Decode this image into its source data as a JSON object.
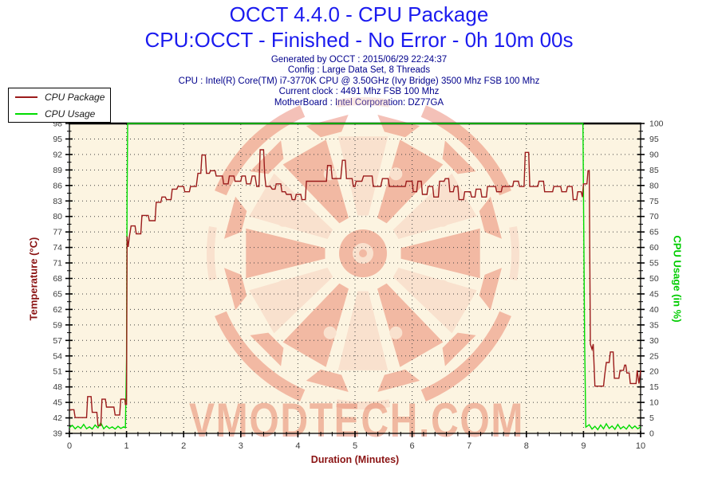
{
  "header": {
    "title": "OCCT 4.4.0 - CPU Package",
    "subtitle": "CPU:OCCT - Finished - No Error - 0h 10m 00s",
    "info_lines": [
      "Generated by OCCT : 2015/06/29 22:24:37",
      "Config : Large Data Set, 8 Threads",
      "CPU : Intel(R) Core(TM) i7-3770K CPU @ 3.50GHz (Ivy Bridge) 3500 Mhz FSB 100 Mhz",
      "Current clock : 4491 Mhz FSB 100 Mhz",
      "MotherBoard : Intel Corporation: DZ77GA"
    ]
  },
  "legend": {
    "items": [
      {
        "label": "CPU Package",
        "color": "#9b1b1b"
      },
      {
        "label": "CPU Usage",
        "color": "#00dc00"
      }
    ]
  },
  "watermark": {
    "text": "VMODTECH.COM"
  },
  "colors": {
    "title_blue": "#1b1bef",
    "info_navy": "#00008c",
    "plot_bg": "#fcf4e1",
    "grid": "#444444",
    "axis": "#000000",
    "tick_label": "#3c3c3c",
    "temp_line": "#9b1b1b",
    "usage_line": "#00dc00",
    "temp_axis_title": "#8b1414",
    "usage_axis_title": "#00cc00",
    "watermark_red": "#dd3418",
    "watermark_light": "#f3b7a4",
    "watermark_text": "#e06648"
  },
  "chart_data": {
    "type": "line",
    "title": "OCCT 4.4.0 - CPU Package",
    "xlabel": "Duration (Minutes)",
    "ylabel_left": "Temperature (°C)",
    "ylabel_right": "CPU Usage (in %)",
    "x_range": [
      0,
      10
    ],
    "x_tick_labels": [
      "0",
      "1",
      "2",
      "3",
      "4",
      "5",
      "6",
      "7",
      "8",
      "9",
      "10"
    ],
    "x_minor_per_major": 5,
    "y_left_range": [
      39,
      98
    ],
    "y_left_tick_labels": [
      "98",
      "95",
      "92",
      "89",
      "86",
      "83",
      "80",
      "77",
      "74",
      "71",
      "68",
      "65",
      "62",
      "59",
      "57",
      "54",
      "51",
      "48",
      "45",
      "42",
      "39"
    ],
    "y_right_range": [
      0,
      100
    ],
    "y_right_tick_labels": [
      "100",
      "95",
      "90",
      "85",
      "80",
      "75",
      "70",
      "65",
      "60",
      "55",
      "50",
      "45",
      "40",
      "35",
      "30",
      "25",
      "20",
      "15",
      "10",
      "5",
      "0"
    ],
    "y_minor_per_major": 2,
    "grid": "dotted",
    "legend_position": "top-left",
    "series": [
      {
        "name": "CPU Package",
        "axis": "left",
        "unit": "°C",
        "color": "#9b1b1b",
        "points": [
          [
            0,
            43.5
          ],
          [
            0.08,
            43.5
          ],
          [
            0.1,
            42
          ],
          [
            0.3,
            42
          ],
          [
            0.32,
            46
          ],
          [
            0.38,
            46
          ],
          [
            0.4,
            43
          ],
          [
            0.48,
            43
          ],
          [
            0.5,
            40.5
          ],
          [
            0.55,
            40.5
          ],
          [
            0.57,
            45.5
          ],
          [
            0.63,
            45.5
          ],
          [
            0.65,
            44
          ],
          [
            0.78,
            44
          ],
          [
            0.8,
            42.5
          ],
          [
            0.88,
            42.5
          ],
          [
            0.9,
            45.5
          ],
          [
            0.97,
            45.5
          ],
          [
            0.98,
            44.5
          ],
          [
            1.0,
            44.5
          ],
          [
            1.01,
            76.5
          ],
          [
            1.03,
            74.5
          ],
          [
            1.05,
            76.5
          ],
          [
            1.08,
            78.5
          ],
          [
            1.15,
            78.5
          ],
          [
            1.17,
            77
          ],
          [
            1.25,
            77
          ],
          [
            1.27,
            80.5
          ],
          [
            1.38,
            80.5
          ],
          [
            1.4,
            79.5
          ],
          [
            1.5,
            79.5
          ],
          [
            1.52,
            83
          ],
          [
            1.6,
            83
          ],
          [
            1.62,
            84
          ],
          [
            1.68,
            84
          ],
          [
            1.7,
            83.5
          ],
          [
            1.78,
            83.5
          ],
          [
            1.8,
            85.5
          ],
          [
            1.88,
            85.5
          ],
          [
            1.9,
            86
          ],
          [
            2.0,
            86
          ],
          [
            2.02,
            85
          ],
          [
            2.1,
            85
          ],
          [
            2.12,
            86
          ],
          [
            2.22,
            86
          ],
          [
            2.25,
            88.5
          ],
          [
            2.3,
            88.5
          ],
          [
            2.32,
            92
          ],
          [
            2.38,
            92
          ],
          [
            2.4,
            88.5
          ],
          [
            2.45,
            88.5
          ],
          [
            2.47,
            89
          ],
          [
            2.55,
            89
          ],
          [
            2.57,
            88
          ],
          [
            2.68,
            88
          ],
          [
            2.7,
            86.5
          ],
          [
            2.78,
            86.5
          ],
          [
            2.8,
            88
          ],
          [
            2.88,
            88
          ],
          [
            2.9,
            87
          ],
          [
            3.0,
            87
          ],
          [
            3.02,
            88
          ],
          [
            3.08,
            88
          ],
          [
            3.1,
            86.5
          ],
          [
            3.17,
            86.5
          ],
          [
            3.2,
            88
          ],
          [
            3.25,
            88
          ],
          [
            3.28,
            86
          ],
          [
            3.32,
            86
          ],
          [
            3.34,
            93
          ],
          [
            3.4,
            93
          ],
          [
            3.42,
            88
          ],
          [
            3.44,
            86
          ],
          [
            3.52,
            86
          ],
          [
            3.55,
            85.5
          ],
          [
            3.6,
            85.5
          ],
          [
            3.62,
            86.5
          ],
          [
            3.7,
            86.5
          ],
          [
            3.72,
            85
          ],
          [
            3.78,
            85
          ],
          [
            3.8,
            84.5
          ],
          [
            3.88,
            84.5
          ],
          [
            3.9,
            83.5
          ],
          [
            3.95,
            83.5
          ],
          [
            3.97,
            84.5
          ],
          [
            4.05,
            84.5
          ],
          [
            4.07,
            83.5
          ],
          [
            4.13,
            83.5
          ],
          [
            4.15,
            87
          ],
          [
            4.5,
            87
          ],
          [
            4.52,
            90
          ],
          [
            4.58,
            90
          ],
          [
            4.6,
            87.5
          ],
          [
            4.75,
            87.5
          ],
          [
            4.78,
            91
          ],
          [
            4.83,
            91
          ],
          [
            4.85,
            87.5
          ],
          [
            4.95,
            87.5
          ],
          [
            4.97,
            86
          ],
          [
            5.0,
            86
          ],
          [
            5.02,
            87
          ],
          [
            5.12,
            87
          ],
          [
            5.15,
            88
          ],
          [
            5.3,
            88
          ],
          [
            5.32,
            86
          ],
          [
            5.45,
            86
          ],
          [
            5.48,
            87.5
          ],
          [
            5.58,
            87.5
          ],
          [
            5.6,
            86
          ],
          [
            5.88,
            86
          ],
          [
            5.9,
            87
          ],
          [
            6.0,
            87
          ],
          [
            6.02,
            85
          ],
          [
            6.08,
            85
          ],
          [
            6.1,
            87
          ],
          [
            6.16,
            87
          ],
          [
            6.18,
            84.5
          ],
          [
            6.26,
            84.5
          ],
          [
            6.28,
            86
          ],
          [
            6.36,
            86
          ],
          [
            6.38,
            84
          ],
          [
            6.46,
            84
          ],
          [
            6.48,
            87
          ],
          [
            6.56,
            87
          ],
          [
            6.58,
            87.5
          ],
          [
            6.64,
            87.5
          ],
          [
            6.66,
            85
          ],
          [
            6.72,
            85
          ],
          [
            6.74,
            86
          ],
          [
            6.8,
            86
          ],
          [
            6.82,
            83.5
          ],
          [
            6.9,
            83.5
          ],
          [
            6.92,
            85
          ],
          [
            7.02,
            85
          ],
          [
            7.04,
            84
          ],
          [
            7.1,
            84
          ],
          [
            7.12,
            85.5
          ],
          [
            7.2,
            85.5
          ],
          [
            7.22,
            84
          ],
          [
            7.3,
            84
          ],
          [
            7.32,
            86
          ],
          [
            7.46,
            86
          ],
          [
            7.48,
            85
          ],
          [
            7.56,
            85
          ],
          [
            7.58,
            86
          ],
          [
            7.76,
            86
          ],
          [
            7.78,
            87
          ],
          [
            7.86,
            87
          ],
          [
            7.88,
            86
          ],
          [
            7.96,
            86
          ],
          [
            7.98,
            92.5
          ],
          [
            8.04,
            92.5
          ],
          [
            8.06,
            86
          ],
          [
            8.2,
            86
          ],
          [
            8.22,
            87
          ],
          [
            8.3,
            87
          ],
          [
            8.32,
            85
          ],
          [
            8.46,
            85
          ],
          [
            8.48,
            86
          ],
          [
            8.6,
            86
          ],
          [
            8.62,
            85
          ],
          [
            8.7,
            85
          ],
          [
            8.72,
            86
          ],
          [
            8.8,
            86
          ],
          [
            8.82,
            83.5
          ],
          [
            8.88,
            83.5
          ],
          [
            8.9,
            85
          ],
          [
            8.96,
            85
          ],
          [
            8.98,
            84
          ],
          [
            9.0,
            86.5
          ],
          [
            9.06,
            86.5
          ],
          [
            9.08,
            89
          ],
          [
            9.1,
            89
          ],
          [
            9.12,
            56
          ],
          [
            9.15,
            55
          ],
          [
            9.17,
            56
          ],
          [
            9.2,
            48
          ],
          [
            9.35,
            48
          ],
          [
            9.37,
            50
          ],
          [
            9.4,
            52.5
          ],
          [
            9.45,
            52.5
          ],
          [
            9.47,
            54.5
          ],
          [
            9.52,
            54.5
          ],
          [
            9.54,
            49.5
          ],
          [
            9.62,
            49.5
          ],
          [
            9.64,
            51
          ],
          [
            9.7,
            51
          ],
          [
            9.72,
            52
          ],
          [
            9.74,
            52
          ],
          [
            9.76,
            50.5
          ],
          [
            9.8,
            50.5
          ],
          [
            9.82,
            48.5
          ],
          [
            9.92,
            48.5
          ],
          [
            9.94,
            51
          ],
          [
            9.97,
            48.5
          ],
          [
            10,
            51
          ]
        ]
      },
      {
        "name": "CPU Usage",
        "axis": "right",
        "unit": "%",
        "color": "#00dc00",
        "points": [
          [
            0,
            1.8
          ],
          [
            0.05,
            2.6
          ],
          [
            0.1,
            1.5
          ],
          [
            0.15,
            2.3
          ],
          [
            0.2,
            1.6
          ],
          [
            0.25,
            2.9
          ],
          [
            0.3,
            1.5
          ],
          [
            0.35,
            2.1
          ],
          [
            0.4,
            1.4
          ],
          [
            0.45,
            2.7
          ],
          [
            0.5,
            1.8
          ],
          [
            0.55,
            3.4
          ],
          [
            0.6,
            1.5
          ],
          [
            0.65,
            2.4
          ],
          [
            0.7,
            1.6
          ],
          [
            0.75,
            2.1
          ],
          [
            0.8,
            1.4
          ],
          [
            0.85,
            2.3
          ],
          [
            0.9,
            1.6
          ],
          [
            0.95,
            2.1
          ],
          [
            0.98,
            1.8
          ],
          [
            1.0,
            24
          ],
          [
            1.01,
            76
          ],
          [
            1.02,
            100
          ],
          [
            8.99,
            100
          ],
          [
            9.0,
            77
          ],
          [
            9.02,
            30
          ],
          [
            9.04,
            2
          ],
          [
            9.1,
            2.8
          ],
          [
            9.15,
            1.4
          ],
          [
            9.2,
            2.3
          ],
          [
            9.25,
            1.2
          ],
          [
            9.3,
            2.7
          ],
          [
            9.35,
            1.5
          ],
          [
            9.4,
            3.1
          ],
          [
            9.45,
            1.6
          ],
          [
            9.5,
            2.4
          ],
          [
            9.55,
            1.3
          ],
          [
            9.6,
            2.9
          ],
          [
            9.65,
            1.5
          ],
          [
            9.7,
            2.2
          ],
          [
            9.75,
            1.4
          ],
          [
            9.8,
            2.7
          ],
          [
            9.85,
            1.6
          ],
          [
            9.9,
            2.4
          ],
          [
            9.95,
            1.5
          ],
          [
            10,
            2.1
          ]
        ]
      }
    ]
  }
}
